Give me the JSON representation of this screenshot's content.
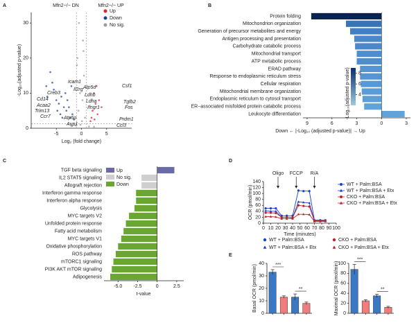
{
  "panel_labels": [
    "A",
    "B",
    "C",
    "D",
    "E"
  ],
  "chart_data": [
    {
      "type": "scatter",
      "title_left": "Mfn2−/− DN",
      "title_right": "Mfn2−/− UP",
      "xlabel": "Log₂ (fold change)",
      "ylabel": "-Log₁₀(adjusted p-value)",
      "xlim": [
        -10,
        10
      ],
      "xticks": [
        -5,
        0,
        5
      ],
      "ylim": [
        0,
        33
      ],
      "yticks": [
        0,
        10,
        20,
        30
      ],
      "threshold_x": [
        -1,
        1
      ],
      "threshold_y": 1.3,
      "legend": "upper right",
      "series": [
        {
          "name": "Up",
          "color": "#e0202a",
          "x": [
            2.5,
            3,
            2.8,
            3.5,
            2.2,
            3.2,
            2,
            4,
            2.6,
            1.8
          ],
          "y": [
            10,
            12,
            7,
            8,
            5,
            4,
            3,
            6,
            2.5,
            2
          ]
        },
        {
          "name": "Down",
          "color": "#1f3f8f",
          "x": [
            -6.2,
            -7,
            -5.5,
            -6.8,
            -5,
            -4.5,
            -4,
            -3.5,
            -3,
            -2.5,
            -4.2,
            -3.8,
            -2.2,
            -1.8,
            -2.8,
            -5.8,
            -1.5,
            -3.2,
            -2,
            -4.8
          ],
          "y": [
            16,
            12,
            11,
            9,
            8,
            7,
            9,
            6,
            5,
            6,
            4,
            3,
            3,
            4,
            8,
            13,
            2.5,
            10,
            12,
            5
          ]
        },
        {
          "name": "No sig.",
          "color": "#9a9a9a",
          "x": [
            -0.5,
            0.3,
            -0.8,
            0.5,
            -0.3,
            0.2,
            -0.6,
            0.7,
            0.1,
            -0.2,
            -1.2,
            1.5,
            -2,
            2.5,
            -0.9,
            0.4
          ],
          "y": [
            30,
            25,
            20,
            15,
            10,
            8,
            5,
            3,
            2,
            1,
            0.8,
            0.5,
            0.6,
            0.4,
            18,
            22
          ]
        }
      ],
      "annotations": [
        {
          "text": "Icam1",
          "color": "#1f3f8f"
        },
        {
          "text": "Il2rg",
          "color": "#1f3f8f"
        },
        {
          "text": "Atp5d",
          "color": "#1f3f8f"
        },
        {
          "text": "Creb3",
          "color": "#1f3f8f"
        },
        {
          "text": "Ldhb",
          "color": "#1f3f8f"
        },
        {
          "text": "Cd14",
          "color": "#1f3f8f"
        },
        {
          "text": "Ldha",
          "color": "#1f3f8f"
        },
        {
          "text": "Acaa2",
          "color": "#1f3f8f"
        },
        {
          "text": "Ifngr1",
          "color": "#1f3f8f"
        },
        {
          "text": "Trim13",
          "color": "#1f3f8f"
        },
        {
          "text": "Ccr7",
          "color": "#1f3f8f"
        },
        {
          "text": "Atp5o",
          "color": "#1f3f8f"
        },
        {
          "text": "Aup1",
          "color": "#1f3f8f"
        },
        {
          "text": "Csf1",
          "color": "#e0202a"
        },
        {
          "text": "Tgfb2",
          "color": "#e0202a"
        },
        {
          "text": "Fos",
          "color": "#e0202a"
        },
        {
          "text": "Prdm1",
          "color": "#e0202a"
        },
        {
          "text": "Ccl3",
          "color": "#e0202a"
        }
      ]
    },
    {
      "type": "barh",
      "categories": [
        "Protein folding",
        "Mitochondrion organization",
        "Generation of precursor metabolites and energy",
        "Antigen processing and presentation",
        "Carbohydrate catabolic process",
        "Mitochondrial transport",
        "ATP metabolic process",
        "ERAD pathway",
        "Response to endoplasmic reticulum stress",
        "Cellular respiration",
        "Mitochondrial membrane organization",
        "Endoplasmic reticulum to cytosol transport",
        "ER−associated misfolded protein catabolic process",
        "Leukocyte differentiation"
      ],
      "values": [
        -8.5,
        -4.3,
        -3.8,
        -3.3,
        -3.2,
        -3.0,
        -3.0,
        -2.6,
        -2.6,
        -2.5,
        -2.4,
        -2.3,
        -2.1,
        2.8
      ],
      "colors": [
        "#0b2350",
        "#3a74b8",
        "#437fc4",
        "#4a88cb",
        "#4a88cb",
        "#4e8dce",
        "#4e8dce",
        "#5595d3",
        "#5595d3",
        "#5898d5",
        "#5b9bd6",
        "#5e9ed8",
        "#62a2da",
        "#62a2da"
      ],
      "xlim": [
        -9.5,
        3.5
      ],
      "xticks": [
        {
          "value": -9,
          "label": "9"
        },
        {
          "value": -6,
          "label": "6"
        },
        {
          "value": -3,
          "label": "3"
        },
        0,
        3
      ],
      "xlabel": "Down ← |-Log₁₀ (adjusted p-value)| → Up",
      "colorbar": {
        "label": "-Log₁₀(adjusted p-value)",
        "lim": [
          2,
          9
        ],
        "ticks": [
          4,
          6,
          8
        ],
        "colors": [
          "#9ecae1",
          "#08306b"
        ]
      }
    },
    {
      "type": "barh",
      "categories": [
        "TGF beta signaling",
        "IL2 STAT5 signaling",
        "Allograft rejection",
        "Interferon gamma response",
        "Interferon alpha response",
        "Glycolysis",
        "MYC targets V2",
        "Unfolded protein response",
        "Fatty acid metabolism",
        "MYC targets V1",
        "Oxidative phosphorylation",
        "ROS pathway",
        "mTORC1 signaling",
        "PI3K AKT mTOR signaling",
        "Adipogenesis"
      ],
      "values": [
        2.2,
        -2.0,
        -2.0,
        -2.7,
        -2.7,
        -2.9,
        -3.6,
        -4.0,
        -4.3,
        -4.6,
        -5.0,
        -5.3,
        -5.6,
        -5.8,
        -6.0
      ],
      "colors": [
        "#6a6aa6",
        "#cfcfcf",
        "#cfcfcf",
        "#6aa632",
        "#6aa632",
        "#6aa632",
        "#6aa632",
        "#6aa632",
        "#6aa632",
        "#6aa632",
        "#6aa632",
        "#6aa632",
        "#6aa632",
        "#6aa632",
        "#6aa632"
      ],
      "legend": [
        {
          "name": "Up",
          "color": "#6a6aa6"
        },
        {
          "name": "No sig.",
          "color": "#cfcfcf"
        },
        {
          "name": "Down",
          "color": "#6aa632"
        }
      ],
      "xlim": [
        -6.8,
        3.4
      ],
      "xticks": [
        {
          "value": -5.0,
          "label": "-5.0"
        },
        -2.5,
        0,
        2.5
      ],
      "xlabel": "t-value"
    },
    {
      "type": "line",
      "x": [
        3,
        10,
        17,
        25,
        32,
        40,
        48,
        55,
        63,
        70,
        78,
        85
      ],
      "series": [
        {
          "name": "WT + Palm:BSA",
          "color": "#1a3fd0",
          "marker": "circle",
          "values": [
            50,
            50,
            50,
            25,
            25,
            25,
            110,
            108,
            108,
            10,
            10,
            10
          ]
        },
        {
          "name": "WT + Palm:BSA + Etx",
          "color": "#1a3fd0",
          "marker": "triangle",
          "values": [
            42,
            40,
            40,
            20,
            20,
            18,
            72,
            70,
            68,
            8,
            8,
            8
          ]
        },
        {
          "name": "CKO + Palm:BSA",
          "color": "#c0202a",
          "marker": "circle",
          "values": [
            35,
            35,
            34,
            20,
            20,
            19,
            60,
            58,
            56,
            8,
            8,
            8
          ]
        },
        {
          "name": "CKO + Palm:BSA + Etx",
          "color": "#c0202a",
          "marker": "triangle",
          "values": [
            22,
            22,
            21,
            15,
            15,
            15,
            30,
            30,
            29,
            6,
            6,
            6
          ]
        }
      ],
      "xlim": [
        0,
        100
      ],
      "xticks": [
        0,
        10,
        20,
        30,
        40,
        50,
        60,
        70,
        80,
        90,
        100
      ],
      "ylim": [
        0,
        140
      ],
      "yticks": [
        0,
        20,
        40,
        60,
        80,
        100,
        120,
        140
      ],
      "xlabel": "Time (minutes)",
      "ylabel": "OCR (pmol/min)",
      "annotations": [
        {
          "text": "Oligo",
          "x": 20
        },
        {
          "text": "FCCP",
          "x": 45
        },
        {
          "text": "R/A",
          "x": 70
        }
      ]
    },
    {
      "type": "bar",
      "ylabel": "Basal OCR (pmol/min)",
      "values": [
        33,
        13,
        13,
        8
      ],
      "errors": [
        2,
        1,
        2.5,
        1
      ],
      "colors": [
        "#3b78c4",
        "#f07c7c",
        "#3b78c4",
        "#f07c7c"
      ],
      "ylim": [
        0,
        40
      ],
      "yticks": [
        0,
        10,
        20,
        30,
        40
      ],
      "significance": [
        {
          "text": "***"
        },
        {
          "text": "**"
        }
      ]
    },
    {
      "type": "bar",
      "ylabel": "Maximal OCR (pmol/min)",
      "values": [
        88,
        25,
        35,
        12
      ],
      "errors": [
        10,
        2,
        3,
        2
      ],
      "colors": [
        "#3b78c4",
        "#f07c7c",
        "#3b78c4",
        "#f07c7c"
      ],
      "ylim": [
        0,
        100
      ],
      "yticks": [
        0,
        20,
        40,
        60,
        80,
        100
      ],
      "significance": [
        {
          "text": "***"
        },
        {
          "text": "**"
        }
      ]
    }
  ],
  "shared_legend": [
    {
      "name": "WT + Palm:BSA",
      "color": "#1a3fd0",
      "marker": "circle"
    },
    {
      "name": "CKO + Palm:BSA",
      "color": "#c0202a",
      "marker": "circle"
    },
    {
      "name": "WT + Palm:BSA + Etx",
      "color": "#1a3fd0",
      "marker": "triangle"
    },
    {
      "name": "CKO + Palm:BSA + Etx",
      "color": "#c0202a",
      "marker": "triangle"
    }
  ]
}
